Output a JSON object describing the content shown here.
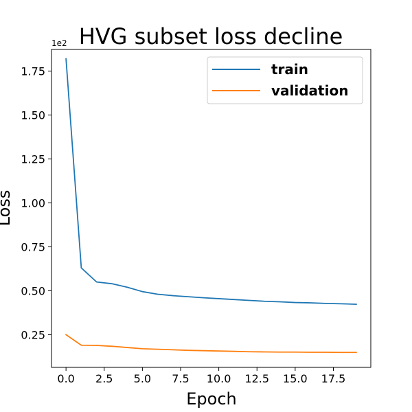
{
  "chart_data": {
    "type": "line",
    "title": "HVG subset loss decline",
    "xlabel": "Epoch",
    "ylabel": "Loss",
    "y_offset_label": "1e2",
    "xlim": [
      -0.95,
      19.95
    ],
    "ylim": [
      0.064,
      1.873
    ],
    "x_ticks": [
      0.0,
      2.5,
      5.0,
      7.5,
      10.0,
      12.5,
      15.0,
      17.5
    ],
    "x_tick_labels": [
      "0.0",
      "2.5",
      "5.0",
      "7.5",
      "10.0",
      "12.5",
      "15.0",
      "17.5"
    ],
    "y_ticks": [
      0.25,
      0.5,
      0.75,
      1.0,
      1.25,
      1.5,
      1.75
    ],
    "y_tick_labels": [
      "0.25",
      "0.50",
      "0.75",
      "1.00",
      "1.25",
      "1.50",
      "1.75"
    ],
    "grid": false,
    "legend_position": "top-right",
    "x": [
      0,
      1,
      2,
      3,
      4,
      5,
      6,
      7,
      8,
      9,
      10,
      11,
      12,
      13,
      14,
      15,
      16,
      17,
      18,
      19
    ],
    "series": [
      {
        "name": "train",
        "color": "#1f77b4",
        "values": [
          1.82,
          0.63,
          0.55,
          0.54,
          0.52,
          0.495,
          0.48,
          0.472,
          0.466,
          0.46,
          0.455,
          0.45,
          0.445,
          0.44,
          0.437,
          0.433,
          0.431,
          0.428,
          0.426,
          0.423
        ]
      },
      {
        "name": "validation",
        "color": "#ff7f0e",
        "values": [
          0.25,
          0.19,
          0.189,
          0.184,
          0.177,
          0.17,
          0.167,
          0.164,
          0.161,
          0.159,
          0.157,
          0.155,
          0.153,
          0.152,
          0.151,
          0.151,
          0.15,
          0.15,
          0.149,
          0.149
        ]
      }
    ]
  }
}
